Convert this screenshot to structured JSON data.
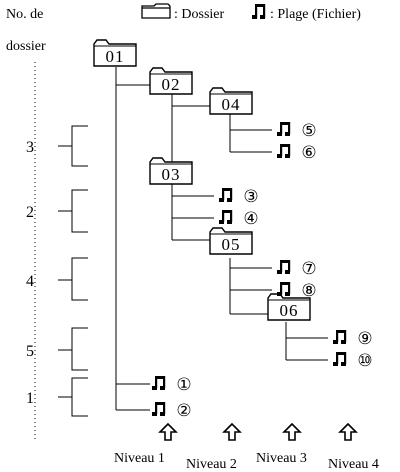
{
  "header": {
    "folder_number_label_line1": "No. de",
    "folder_number_label_line2": "dossier"
  },
  "legend": {
    "folder_text": ": Dossier",
    "track_text": ": Plage (Fichier)"
  },
  "folders": [
    "01",
    "02",
    "04",
    "03",
    "05",
    "06"
  ],
  "tracks": [
    "①",
    "②",
    "③",
    "④",
    "⑤",
    "⑥",
    "⑦",
    "⑧",
    "⑨",
    "⑩"
  ],
  "folder_numbers": [
    "3",
    "2",
    "4",
    "5",
    "1"
  ],
  "levels": [
    "Niveau 1",
    "Niveau 2",
    "Niveau 3",
    "Niveau 4"
  ]
}
